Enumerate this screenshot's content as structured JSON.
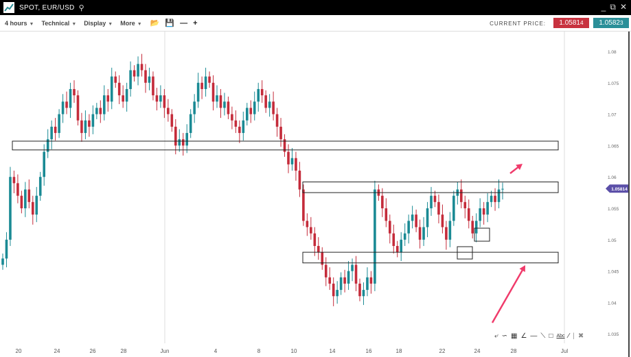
{
  "window": {
    "title": "SPOT, EUR/USD",
    "icons": [
      "search-icon",
      "minimize-icon",
      "restore-icon",
      "close-icon"
    ]
  },
  "toolbar": {
    "timeframe": "4 hours",
    "technical": "Technical",
    "display": "Display",
    "more": "More",
    "icons": [
      "folder-open-icon",
      "save-icon",
      "zoom-out-icon",
      "zoom-in-icon"
    ]
  },
  "price": {
    "label": "CURRENT PRICE:",
    "sell": "1.0581",
    "sell_pip": "4",
    "buy": "1.0582",
    "buy_pip": "3",
    "sell_color": "#c8323f",
    "buy_color": "#2b8f98",
    "marker": "1.05814"
  },
  "chart_data": {
    "type": "candlestick",
    "symbol": "EUR/USD",
    "interval": "4 hours",
    "y_ticks": [
      "1.08",
      "1.075",
      "1.07",
      "1.065",
      "1.06",
      "1.055",
      "1.05",
      "1.045",
      "1.04",
      "1.035"
    ],
    "x_ticks": [
      "20",
      "24",
      "26",
      "28",
      "Jun",
      "4",
      "8",
      "10",
      "14",
      "16",
      "18",
      "22",
      "24",
      "28",
      "Jul"
    ],
    "ylim": [
      1.035,
      1.08
    ],
    "closes": [
      1.047,
      1.05,
      1.06,
      1.059,
      1.057,
      1.055,
      1.058,
      1.056,
      1.054,
      1.057,
      1.06,
      1.064,
      1.066,
      1.068,
      1.067,
      1.07,
      1.072,
      1.071,
      1.074,
      1.073,
      1.069,
      1.067,
      1.069,
      1.068,
      1.07,
      1.071,
      1.07,
      1.073,
      1.072,
      1.076,
      1.075,
      1.073,
      1.072,
      1.074,
      1.077,
      1.076,
      1.078,
      1.077,
      1.075,
      1.076,
      1.073,
      1.072,
      1.073,
      1.071,
      1.07,
      1.068,
      1.065,
      1.066,
      1.065,
      1.067,
      1.07,
      1.072,
      1.075,
      1.074,
      1.076,
      1.075,
      1.072,
      1.073,
      1.071,
      1.072,
      1.07,
      1.069,
      1.068,
      1.067,
      1.069,
      1.071,
      1.07,
      1.072,
      1.074,
      1.073,
      1.071,
      1.072,
      1.07,
      1.068,
      1.066,
      1.064,
      1.062,
      1.063,
      1.061,
      1.058,
      1.053,
      1.052,
      1.051,
      1.049,
      1.048,
      1.046,
      1.044,
      1.043,
      1.041,
      1.042,
      1.044,
      1.043,
      1.045,
      1.046,
      1.043,
      1.041,
      1.042,
      1.044,
      1.043,
      1.058,
      1.057,
      1.055,
      1.053,
      1.051,
      1.049,
      1.048,
      1.05,
      1.051,
      1.053,
      1.054,
      1.052,
      1.05,
      1.052,
      1.055,
      1.057,
      1.056,
      1.054,
      1.052,
      1.05,
      1.053,
      1.057,
      1.058,
      1.056,
      1.055,
      1.053,
      1.051,
      1.053,
      1.055,
      1.054,
      1.056,
      1.057,
      1.056,
      1.058,
      1.0581
    ],
    "zones": [
      [
        1.0643,
        1.0657
      ],
      [
        1.0575,
        1.0592
      ],
      [
        1.0463,
        1.048
      ]
    ]
  },
  "drawing_tools": [
    "arrow-icon",
    "curve-icon",
    "fibonacci-icon",
    "fan-icon",
    "horizontal-line-icon",
    "trend-line-icon",
    "rectangle-icon",
    "text-icon",
    "ray-icon",
    "separator",
    "delete-icon"
  ],
  "drawing_text": "Abc"
}
